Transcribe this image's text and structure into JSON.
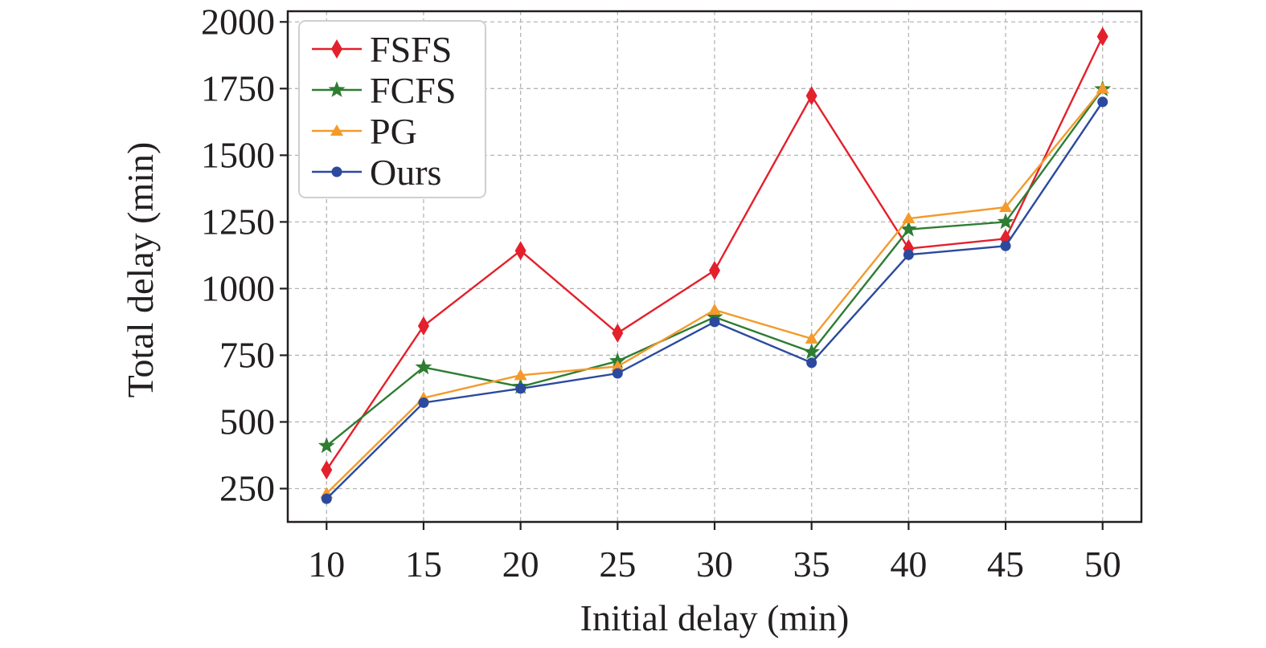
{
  "chart_data": {
    "type": "line",
    "xlabel": "Initial delay (min)",
    "ylabel": "Total delay (min)",
    "x": [
      10,
      15,
      20,
      25,
      30,
      35,
      40,
      45,
      50
    ],
    "xlim": [
      8,
      52
    ],
    "ylim": [
      125,
      2040
    ],
    "yticks": [
      250,
      500,
      750,
      1000,
      1250,
      1500,
      1750,
      2000
    ],
    "grid": true,
    "legend_position": "top-left",
    "series": [
      {
        "name": "FSFS",
        "color": "#e3202b",
        "marker": "diamond",
        "values": [
          320,
          860,
          1142,
          833,
          1068,
          1723,
          1150,
          1187,
          1945
        ]
      },
      {
        "name": "FCFS",
        "color": "#2e7d32",
        "marker": "star",
        "values": [
          410,
          705,
          632,
          728,
          893,
          762,
          1222,
          1250,
          1748
        ]
      },
      {
        "name": "PG",
        "color": "#f39a2c",
        "marker": "triangle",
        "values": [
          232,
          590,
          675,
          708,
          920,
          812,
          1263,
          1305,
          1750
        ]
      },
      {
        "name": "Ours",
        "color": "#2b4a9e",
        "marker": "circle",
        "values": [
          212,
          572,
          625,
          682,
          875,
          722,
          1127,
          1160,
          1700
        ]
      }
    ]
  }
}
